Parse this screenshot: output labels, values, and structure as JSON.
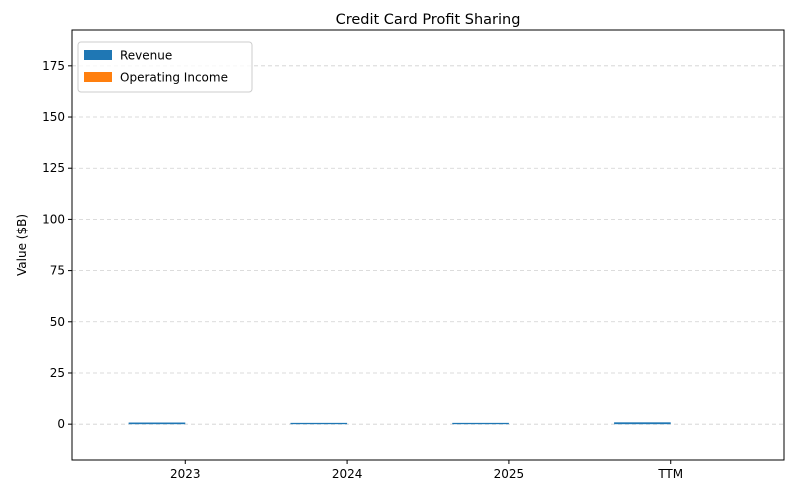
{
  "chart_data": {
    "type": "bar",
    "title": "Credit Card Profit Sharing",
    "xlabel": "",
    "ylabel": "Value ($B)",
    "categories": [
      "2023",
      "2024",
      "2025",
      "TTM"
    ],
    "series": [
      {
        "name": "Revenue",
        "color": "#1f77b4",
        "values": [
          0.8,
          0.5,
          0.5,
          0.9
        ]
      },
      {
        "name": "Operating Income",
        "color": "#ff7f0e",
        "values": [
          0.0,
          0.0,
          0.0,
          0.0
        ]
      }
    ],
    "ylim": [
      -17.5,
      192.5
    ],
    "yticks": [
      0,
      25,
      50,
      75,
      100,
      125,
      150,
      175
    ],
    "grid": true,
    "legend_position": "top-left"
  }
}
